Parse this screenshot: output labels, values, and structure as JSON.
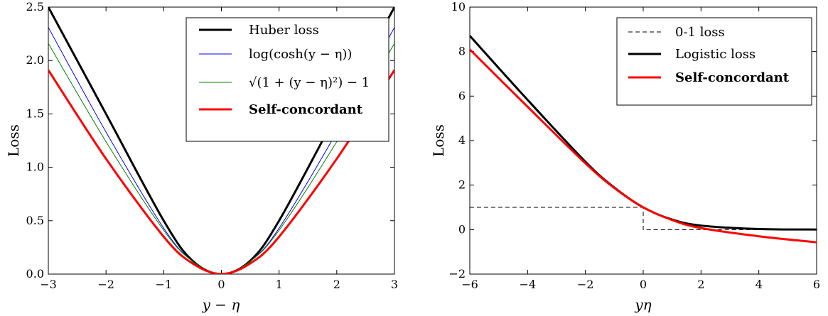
{
  "chart_data": [
    {
      "type": "line",
      "xlabel": "y − η",
      "ylabel": "Loss",
      "xlim": [
        -3,
        3
      ],
      "ylim": [
        0,
        2.5
      ],
      "xticks": [
        "−3",
        "−2",
        "−1",
        "0",
        "1",
        "2",
        "3"
      ],
      "yticks": [
        "0.0",
        "0.5",
        "1.0",
        "1.5",
        "2.0",
        "2.5"
      ],
      "legend_position": "top-right",
      "series": [
        {
          "name": "Huber loss",
          "color": "#000000",
          "width": 3,
          "x": [
            -3,
            -2,
            -1,
            -0.5,
            0,
            0.5,
            1,
            2,
            3
          ],
          "y": [
            2.5,
            1.5,
            0.5,
            0.125,
            0,
            0.125,
            0.5,
            1.5,
            2.5
          ]
        },
        {
          "name": "log(cosh(y − η))",
          "color": "#0000ff",
          "width": 1,
          "x": [
            -3,
            -2,
            -1,
            -0.5,
            0,
            0.5,
            1,
            2,
            3
          ],
          "y": [
            2.31,
            1.33,
            0.43,
            0.12,
            0,
            0.12,
            0.43,
            1.33,
            2.31
          ]
        },
        {
          "name": "√(1 + (y − η)²) − 1",
          "color": "#008000",
          "width": 1,
          "x": [
            -3,
            -2,
            -1,
            -0.5,
            0,
            0.5,
            1,
            2,
            3
          ],
          "y": [
            2.16,
            1.24,
            0.41,
            0.12,
            0,
            0.12,
            0.41,
            1.24,
            2.16
          ]
        },
        {
          "name": "Self-concordant",
          "color": "#ff0000",
          "width": 3,
          "bold": true,
          "x": [
            -3,
            -2,
            -1,
            -0.5,
            0,
            0.5,
            1,
            2,
            3
          ],
          "y": [
            1.91,
            1.08,
            0.35,
            0.1,
            0,
            0.1,
            0.35,
            1.08,
            1.91
          ]
        }
      ]
    },
    {
      "type": "line",
      "xlabel": "yη",
      "ylabel": "Loss",
      "xlim": [
        -6,
        6
      ],
      "ylim": [
        -2,
        10
      ],
      "xticks": [
        "−6",
        "−4",
        "−2",
        "0",
        "2",
        "4",
        "6"
      ],
      "yticks": [
        "−2",
        "0",
        "2",
        "4",
        "6",
        "8",
        "10"
      ],
      "legend_position": "top-right",
      "series": [
        {
          "name": "0-1 loss",
          "color": "#000000",
          "width": 1,
          "dashed": true,
          "step": true,
          "x": [
            -6,
            0,
            0,
            6
          ],
          "y": [
            1,
            1,
            0,
            0
          ]
        },
        {
          "name": "Logistic loss",
          "color": "#000000",
          "width": 3,
          "x": [
            -6,
            -4,
            -2,
            -1,
            0,
            1,
            2,
            4,
            6
          ],
          "y": [
            8.71,
            5.83,
            3.05,
            1.89,
            1.0,
            0.45,
            0.18,
            0.026,
            0.004
          ]
        },
        {
          "name": "Self-concordant",
          "color": "#ff0000",
          "width": 3,
          "bold": true,
          "x": [
            -6,
            -4,
            -2,
            -1,
            0,
            1,
            2,
            4,
            6
          ],
          "y": [
            8.1,
            5.52,
            2.98,
            1.87,
            1.0,
            0.43,
            0.07,
            -0.3,
            -0.57
          ]
        }
      ]
    }
  ]
}
